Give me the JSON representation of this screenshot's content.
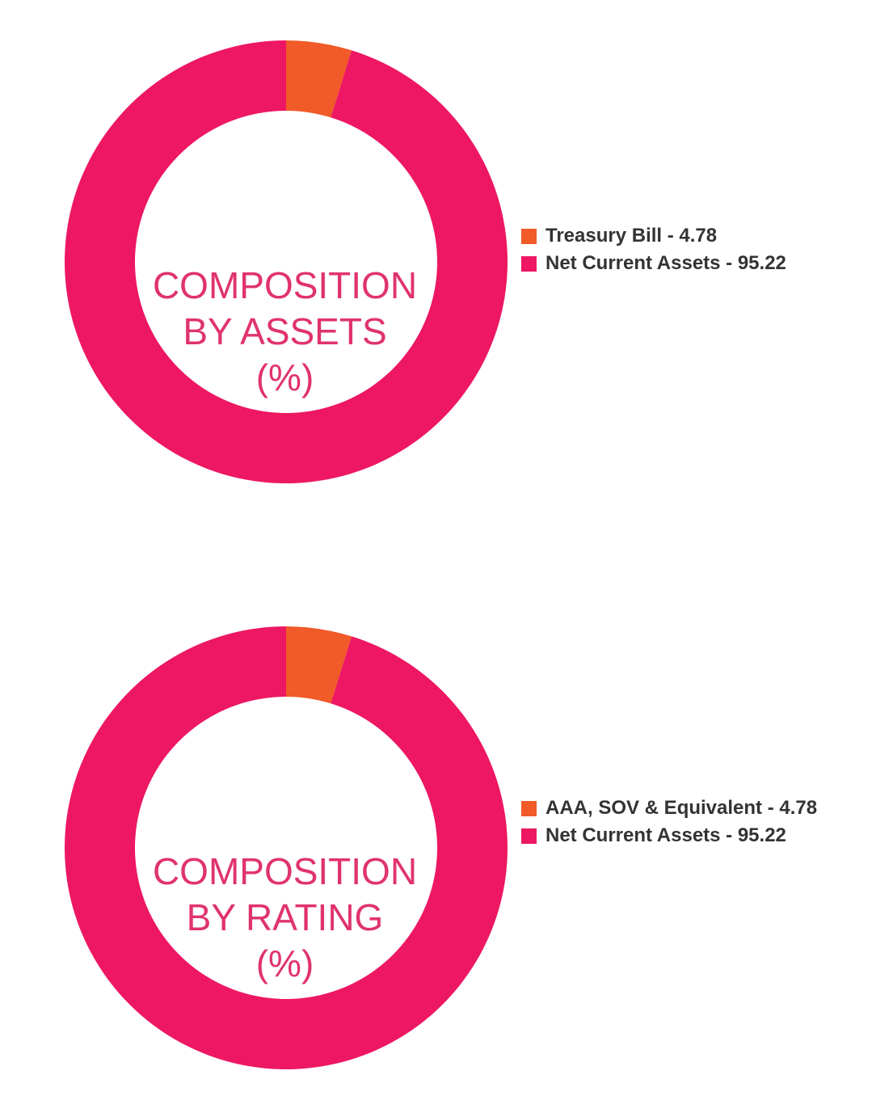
{
  "colors": {
    "treasury": "#f15a29",
    "net_current": "#ed1763",
    "title_text": "#e0336c"
  },
  "chart_data": [
    {
      "type": "pie",
      "donut": true,
      "center_title_lines": [
        "COMPOSITION",
        "BY ASSETS",
        "(%)"
      ],
      "slices": [
        {
          "label": "Treasury Bill - 4.78",
          "value": 4.78,
          "color": "#f15a29"
        },
        {
          "label": "Net Current Assets - 95.22",
          "value": 95.22,
          "color": "#ed1763"
        }
      ],
      "legend_position": "right"
    },
    {
      "type": "pie",
      "donut": true,
      "center_title_lines": [
        "COMPOSITION",
        "BY RATING",
        "(%)"
      ],
      "slices": [
        {
          "label": "AAA, SOV & Equivalent - 4.78",
          "value": 4.78,
          "color": "#f15a29"
        },
        {
          "label": "Net Current Assets - 95.22",
          "value": 95.22,
          "color": "#ed1763"
        }
      ],
      "legend_position": "right"
    }
  ]
}
